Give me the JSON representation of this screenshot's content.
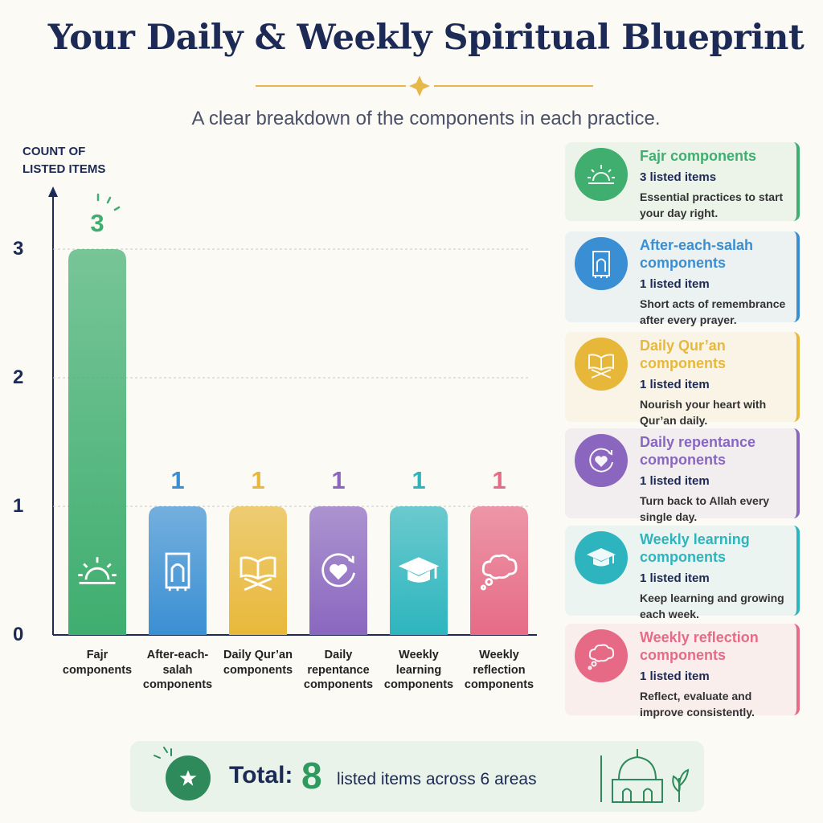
{
  "header": {
    "title": "Your Daily & Weekly Spiritual Blueprint",
    "subtitle": "A clear breakdown of the components in each practice."
  },
  "chart_data": {
    "type": "bar",
    "y_label": "COUNT OF LISTED ITEMS",
    "categories": [
      "Fajr components",
      "After-each-salah components",
      "Daily Qur’an components",
      "Daily repentance components",
      "Weekly learning components",
      "Weekly reflection components"
    ],
    "values": [
      3,
      1,
      1,
      1,
      1,
      1
    ],
    "colors": [
      "#3fae6f",
      "#3a8fd3",
      "#e8b83a",
      "#8a67bf",
      "#2db5be",
      "#e66b86"
    ],
    "ylim": [
      0,
      3.5
    ],
    "yticks": [
      0,
      1,
      2,
      3
    ],
    "grid": true
  },
  "cards": [
    {
      "title": "Fajr components",
      "count": "3 listed items",
      "description": "Essential practices to start your day right."
    },
    {
      "title": "After-each-salah components",
      "count": "1 listed item",
      "description": "Short acts of remembrance after every prayer."
    },
    {
      "title": "Daily Qur’an components",
      "count": "1 listed item",
      "description": "Nourish your heart with Qur’an daily."
    },
    {
      "title": "Daily repentance components",
      "count": "1 listed item",
      "description": "Turn back to Allah every single day."
    },
    {
      "title": "Weekly learning components",
      "count": "1 listed item",
      "description": "Keep learning and growing each week."
    },
    {
      "title": "Weekly reflection components",
      "count": "1 listed item",
      "description": "Reflect, evaluate and improve consistently."
    }
  ],
  "footer": {
    "label": "Total:",
    "total": 8,
    "text": "listed items across 6 areas"
  }
}
